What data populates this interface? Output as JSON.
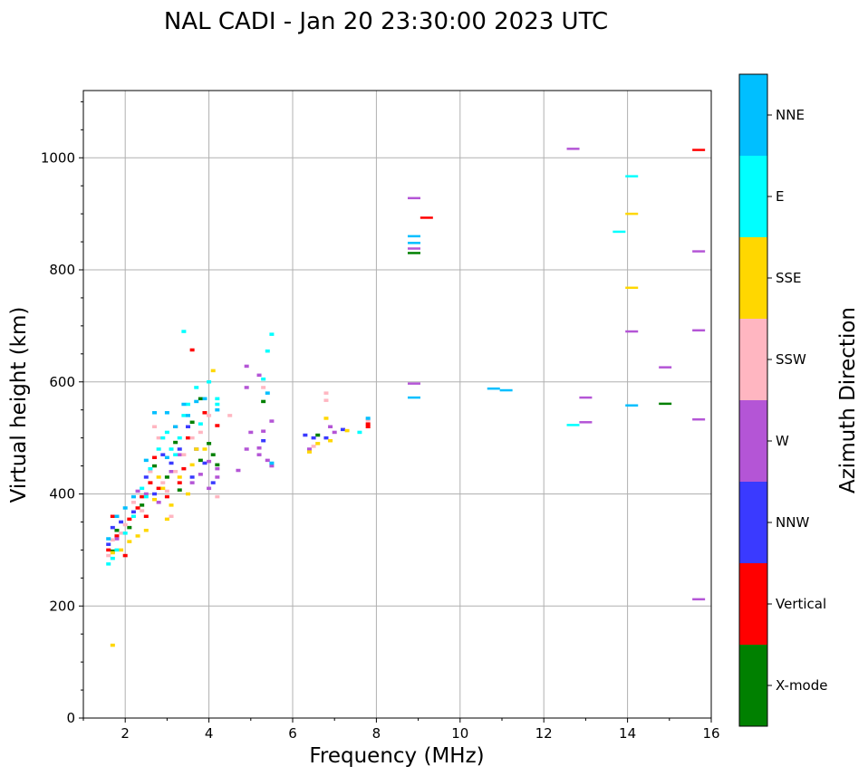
{
  "chart_data": {
    "type": "scatter",
    "title": "NAL CADI - Jan 20 23:30:00 2023 UTC",
    "xlabel": "Frequency (MHz)",
    "ylabel": "Virtual height (km)",
    "xlim": [
      1,
      16
    ],
    "ylim": [
      0,
      1120
    ],
    "xticks": [
      2,
      4,
      6,
      8,
      10,
      12,
      14,
      16
    ],
    "yticks": [
      0,
      200,
      400,
      600,
      800,
      1000
    ],
    "grid": true,
    "colorbar": {
      "label": "Azimuth Direction",
      "categories": [
        "X-mode",
        "Vertical",
        "NNW",
        "W",
        "SSW",
        "SSE",
        "E",
        "NNE"
      ],
      "colors": [
        "#008000",
        "#ff0000",
        "#3a3aff",
        "#b455d6",
        "#ffb6c1",
        "#ffd700",
        "#00ffff",
        "#00bfff"
      ]
    },
    "series": [
      {
        "name": "X-mode",
        "points": [
          [
            1.7,
            298
          ],
          [
            1.8,
            335
          ],
          [
            2.1,
            340
          ],
          [
            2.4,
            380
          ],
          [
            2.7,
            450
          ],
          [
            3.0,
            430
          ],
          [
            3.3,
            407
          ],
          [
            3.6,
            528
          ],
          [
            3.8,
            460
          ],
          [
            4.0,
            490
          ],
          [
            4.2,
            452
          ],
          [
            3.8,
            570
          ],
          [
            5.3,
            565
          ],
          [
            6.6,
            505
          ],
          [
            8.9,
            830
          ],
          [
            14.9,
            561
          ],
          [
            4.1,
            470
          ],
          [
            3.2,
            492
          ]
        ]
      },
      {
        "name": "Vertical",
        "points": [
          [
            1.6,
            300
          ],
          [
            1.7,
            360
          ],
          [
            1.8,
            325
          ],
          [
            2.0,
            290
          ],
          [
            2.1,
            355
          ],
          [
            2.3,
            375
          ],
          [
            2.4,
            395
          ],
          [
            2.6,
            420
          ],
          [
            2.7,
            465
          ],
          [
            2.8,
            410
          ],
          [
            3.0,
            395
          ],
          [
            3.2,
            520
          ],
          [
            3.4,
            445
          ],
          [
            3.5,
            500
          ],
          [
            3.6,
            657
          ],
          [
            3.9,
            545
          ],
          [
            4.2,
            522
          ],
          [
            7.8,
            525
          ],
          [
            7.8,
            520
          ],
          [
            9.2,
            893
          ],
          [
            15.7,
            1014
          ],
          [
            2.5,
            360
          ],
          [
            3.3,
            420
          ]
        ]
      },
      {
        "name": "NNW",
        "points": [
          [
            1.6,
            310
          ],
          [
            1.7,
            340
          ],
          [
            1.9,
            350
          ],
          [
            2.2,
            368
          ],
          [
            2.5,
            430
          ],
          [
            2.7,
            400
          ],
          [
            2.9,
            470
          ],
          [
            3.1,
            455
          ],
          [
            3.3,
            480
          ],
          [
            3.5,
            520
          ],
          [
            3.7,
            480
          ],
          [
            3.9,
            455
          ],
          [
            4.1,
            420
          ],
          [
            5.3,
            495
          ],
          [
            6.3,
            505
          ],
          [
            6.5,
            500
          ],
          [
            6.8,
            500
          ],
          [
            7.2,
            515
          ],
          [
            3.6,
            430
          ]
        ]
      },
      {
        "name": "W",
        "points": [
          [
            1.8,
            320
          ],
          [
            2.3,
            405
          ],
          [
            2.5,
            400
          ],
          [
            2.8,
            385
          ],
          [
            3.1,
            440
          ],
          [
            3.3,
            470
          ],
          [
            3.6,
            420
          ],
          [
            3.8,
            435
          ],
          [
            4.0,
            410
          ],
          [
            4.2,
            430
          ],
          [
            4.2,
            445
          ],
          [
            4.7,
            442
          ],
          [
            4.9,
            480
          ],
          [
            4.9,
            590
          ],
          [
            4.9,
            628
          ],
          [
            5.2,
            482
          ],
          [
            5.2,
            470
          ],
          [
            5.3,
            512
          ],
          [
            5.4,
            460
          ],
          [
            5.5,
            530
          ],
          [
            5.5,
            450
          ],
          [
            5.2,
            612
          ],
          [
            6.4,
            480
          ],
          [
            6.9,
            520
          ],
          [
            7.0,
            510
          ],
          [
            8.9,
            928
          ],
          [
            8.9,
            597
          ],
          [
            8.9,
            838
          ],
          [
            13.0,
            528
          ],
          [
            13.0,
            572
          ],
          [
            14.1,
            690
          ],
          [
            14.9,
            626
          ],
          [
            15.7,
            533
          ],
          [
            15.7,
            692
          ],
          [
            15.7,
            833
          ],
          [
            15.7,
            212
          ],
          [
            12.7,
            1016
          ],
          [
            4.0,
            458
          ],
          [
            5.0,
            510
          ]
        ]
      },
      {
        "name": "SSW",
        "points": [
          [
            1.6,
            290
          ],
          [
            1.7,
            318
          ],
          [
            1.9,
            330
          ],
          [
            2.0,
            345
          ],
          [
            2.2,
            385
          ],
          [
            2.4,
            370
          ],
          [
            2.6,
            440
          ],
          [
            2.8,
            500
          ],
          [
            2.9,
            420
          ],
          [
            3.0,
            405
          ],
          [
            3.1,
            360
          ],
          [
            3.2,
            440
          ],
          [
            3.4,
            470
          ],
          [
            3.6,
            500
          ],
          [
            3.8,
            510
          ],
          [
            4.0,
            540
          ],
          [
            4.2,
            395
          ],
          [
            5.3,
            590
          ],
          [
            6.5,
            485
          ],
          [
            6.8,
            580
          ],
          [
            6.8,
            567
          ],
          [
            7.8,
            532
          ],
          [
            4.5,
            540
          ],
          [
            2.7,
            520
          ]
        ]
      },
      {
        "name": "SSE",
        "points": [
          [
            1.7,
            130
          ],
          [
            1.7,
            295
          ],
          [
            1.9,
            300
          ],
          [
            2.1,
            315
          ],
          [
            2.3,
            325
          ],
          [
            2.5,
            335
          ],
          [
            2.7,
            390
          ],
          [
            2.9,
            410
          ],
          [
            3.0,
            355
          ],
          [
            3.1,
            380
          ],
          [
            3.3,
            430
          ],
          [
            3.5,
            400
          ],
          [
            3.7,
            480
          ],
          [
            3.9,
            480
          ],
          [
            4.1,
            620
          ],
          [
            6.4,
            475
          ],
          [
            6.6,
            490
          ],
          [
            6.8,
            535
          ],
          [
            6.9,
            495
          ],
          [
            7.3,
            513
          ],
          [
            14.1,
            900
          ],
          [
            14.1,
            768
          ],
          [
            3.6,
            452
          ],
          [
            2.8,
            430
          ]
        ]
      },
      {
        "name": "E",
        "points": [
          [
            1.6,
            275
          ],
          [
            1.7,
            285
          ],
          [
            1.8,
            300
          ],
          [
            2.0,
            330
          ],
          [
            2.2,
            360
          ],
          [
            2.4,
            410
          ],
          [
            2.6,
            445
          ],
          [
            2.8,
            480
          ],
          [
            2.9,
            500
          ],
          [
            3.0,
            510
          ],
          [
            3.1,
            480
          ],
          [
            3.2,
            470
          ],
          [
            3.3,
            500
          ],
          [
            3.4,
            690
          ],
          [
            3.5,
            560
          ],
          [
            3.7,
            590
          ],
          [
            3.8,
            525
          ],
          [
            4.0,
            600
          ],
          [
            4.2,
            560
          ],
          [
            4.2,
            570
          ],
          [
            5.3,
            605
          ],
          [
            5.4,
            655
          ],
          [
            5.5,
            685
          ],
          [
            7.6,
            510
          ],
          [
            12.7,
            523
          ],
          [
            13.8,
            868
          ],
          [
            14.1,
            967
          ],
          [
            3.4,
            540
          ],
          [
            2.5,
            395
          ]
        ]
      },
      {
        "name": "NNE",
        "points": [
          [
            1.6,
            320
          ],
          [
            1.8,
            360
          ],
          [
            2.0,
            375
          ],
          [
            2.2,
            395
          ],
          [
            2.5,
            460
          ],
          [
            2.7,
            545
          ],
          [
            3.0,
            545
          ],
          [
            3.2,
            520
          ],
          [
            3.4,
            560
          ],
          [
            3.5,
            540
          ],
          [
            3.7,
            565
          ],
          [
            3.9,
            570
          ],
          [
            4.2,
            550
          ],
          [
            5.4,
            580
          ],
          [
            5.5,
            455
          ],
          [
            7.8,
            535
          ],
          [
            8.9,
            572
          ],
          [
            8.9,
            848
          ],
          [
            8.9,
            860
          ],
          [
            10.8,
            588
          ],
          [
            11.1,
            585
          ],
          [
            14.1,
            558
          ],
          [
            3.0,
            465
          ]
        ]
      }
    ]
  }
}
